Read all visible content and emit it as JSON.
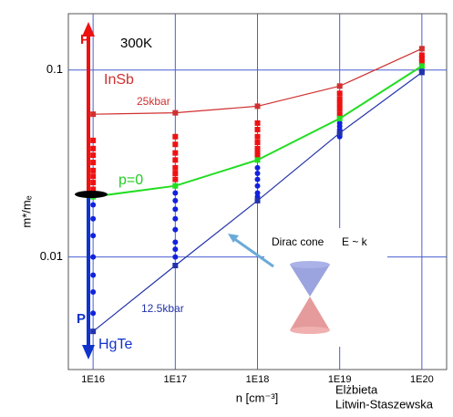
{
  "chart_data": {
    "type": "line",
    "log_x": true,
    "log_y": true,
    "grid": true,
    "xlabel": "n [cm⁻³]",
    "ylabel": "m*/mₑ",
    "xlim": [
      5000000000000000.0,
      2e+20
    ],
    "ylim": [
      0.0025,
      0.2
    ],
    "xticks": [
      {
        "value": 1e+16,
        "label": "1E16"
      },
      {
        "value": 1e+17,
        "label": "1E17"
      },
      {
        "value": 1e+18,
        "label": "1E18"
      },
      {
        "value": 1e+19,
        "label": "1E19"
      },
      {
        "value": 1e+20,
        "label": "1E20"
      }
    ],
    "yticks": [
      0.01,
      0.1
    ],
    "series": [
      {
        "name": "25kbar",
        "color": "#d03030",
        "x": [
          1e+16,
          1e+17,
          1e+18,
          1e+19,
          1e+20
        ],
        "values": [
          0.058,
          0.059,
          0.064,
          0.082,
          0.13
        ]
      },
      {
        "name": "p=0",
        "color": "#22dd22",
        "x": [
          1e+16,
          1e+17,
          1e+18,
          1e+19,
          1e+20
        ],
        "values": [
          0.021,
          0.024,
          0.033,
          0.055,
          0.105
        ]
      },
      {
        "name": "12.5kbar",
        "color": "#2233aa",
        "x": [
          1e+16,
          1e+17,
          1e+18,
          1e+19,
          1e+20
        ],
        "values": [
          0.004,
          0.009,
          0.02,
          0.046,
          0.097
        ]
      }
    ],
    "points": [
      {
        "color": "#ee1111",
        "marker": "square",
        "x": [
          1e+16,
          1e+16,
          1e+16,
          1e+16,
          1e+16,
          1e+16,
          1e+16,
          1e+16,
          1e+17,
          1e+17,
          1e+17,
          1e+17,
          1e+17,
          1e+17,
          1e+17,
          1e+18,
          1e+18,
          1e+18,
          1e+18,
          1e+18,
          1e+18,
          1e+18,
          1e+19,
          1e+19,
          1e+19,
          1e+19,
          1e+19,
          1e+20,
          1e+20,
          1e+20
        ],
        "values": [
          0.042,
          0.038,
          0.035,
          0.032,
          0.029,
          0.027,
          0.025,
          0.023,
          0.044,
          0.04,
          0.036,
          0.033,
          0.03,
          0.028,
          0.026,
          0.052,
          0.048,
          0.044,
          0.041,
          0.038,
          0.036,
          0.034,
          0.075,
          0.07,
          0.066,
          0.062,
          0.058,
          0.12,
          0.115,
          0.11
        ]
      },
      {
        "color": "#1122dd",
        "marker": "circle",
        "x": [
          1e+16,
          1e+16,
          1e+16,
          1e+16,
          1e+16,
          1e+16,
          1e+16,
          1e+17,
          1e+17,
          1e+17,
          1e+17,
          1e+17,
          1e+17,
          1e+17,
          1e+17,
          1e+18,
          1e+18,
          1e+18,
          1e+18,
          1e+18,
          1e+18,
          1e+19,
          1e+19,
          1e+19,
          1e+19,
          1e+19,
          1e+20,
          1e+20
        ],
        "values": [
          0.019,
          0.016,
          0.013,
          0.01,
          0.008,
          0.0065,
          0.005,
          0.022,
          0.02,
          0.018,
          0.016,
          0.014,
          0.012,
          0.011,
          0.01,
          0.03,
          0.028,
          0.026,
          0.024,
          0.022,
          0.021,
          0.052,
          0.05,
          0.048,
          0.046,
          0.044,
          0.1,
          0.098
        ]
      }
    ],
    "annotations": {
      "temperature": "300K",
      "material_top": "InSb",
      "material_bottom": "HgTe",
      "pressure_top": "P",
      "pressure_bottom": "P",
      "cone": "Dirac cone",
      "dispersion": "E ~ k",
      "author_line1": "Elżbieta",
      "author_line2": "Litwin-Staszewska"
    }
  }
}
